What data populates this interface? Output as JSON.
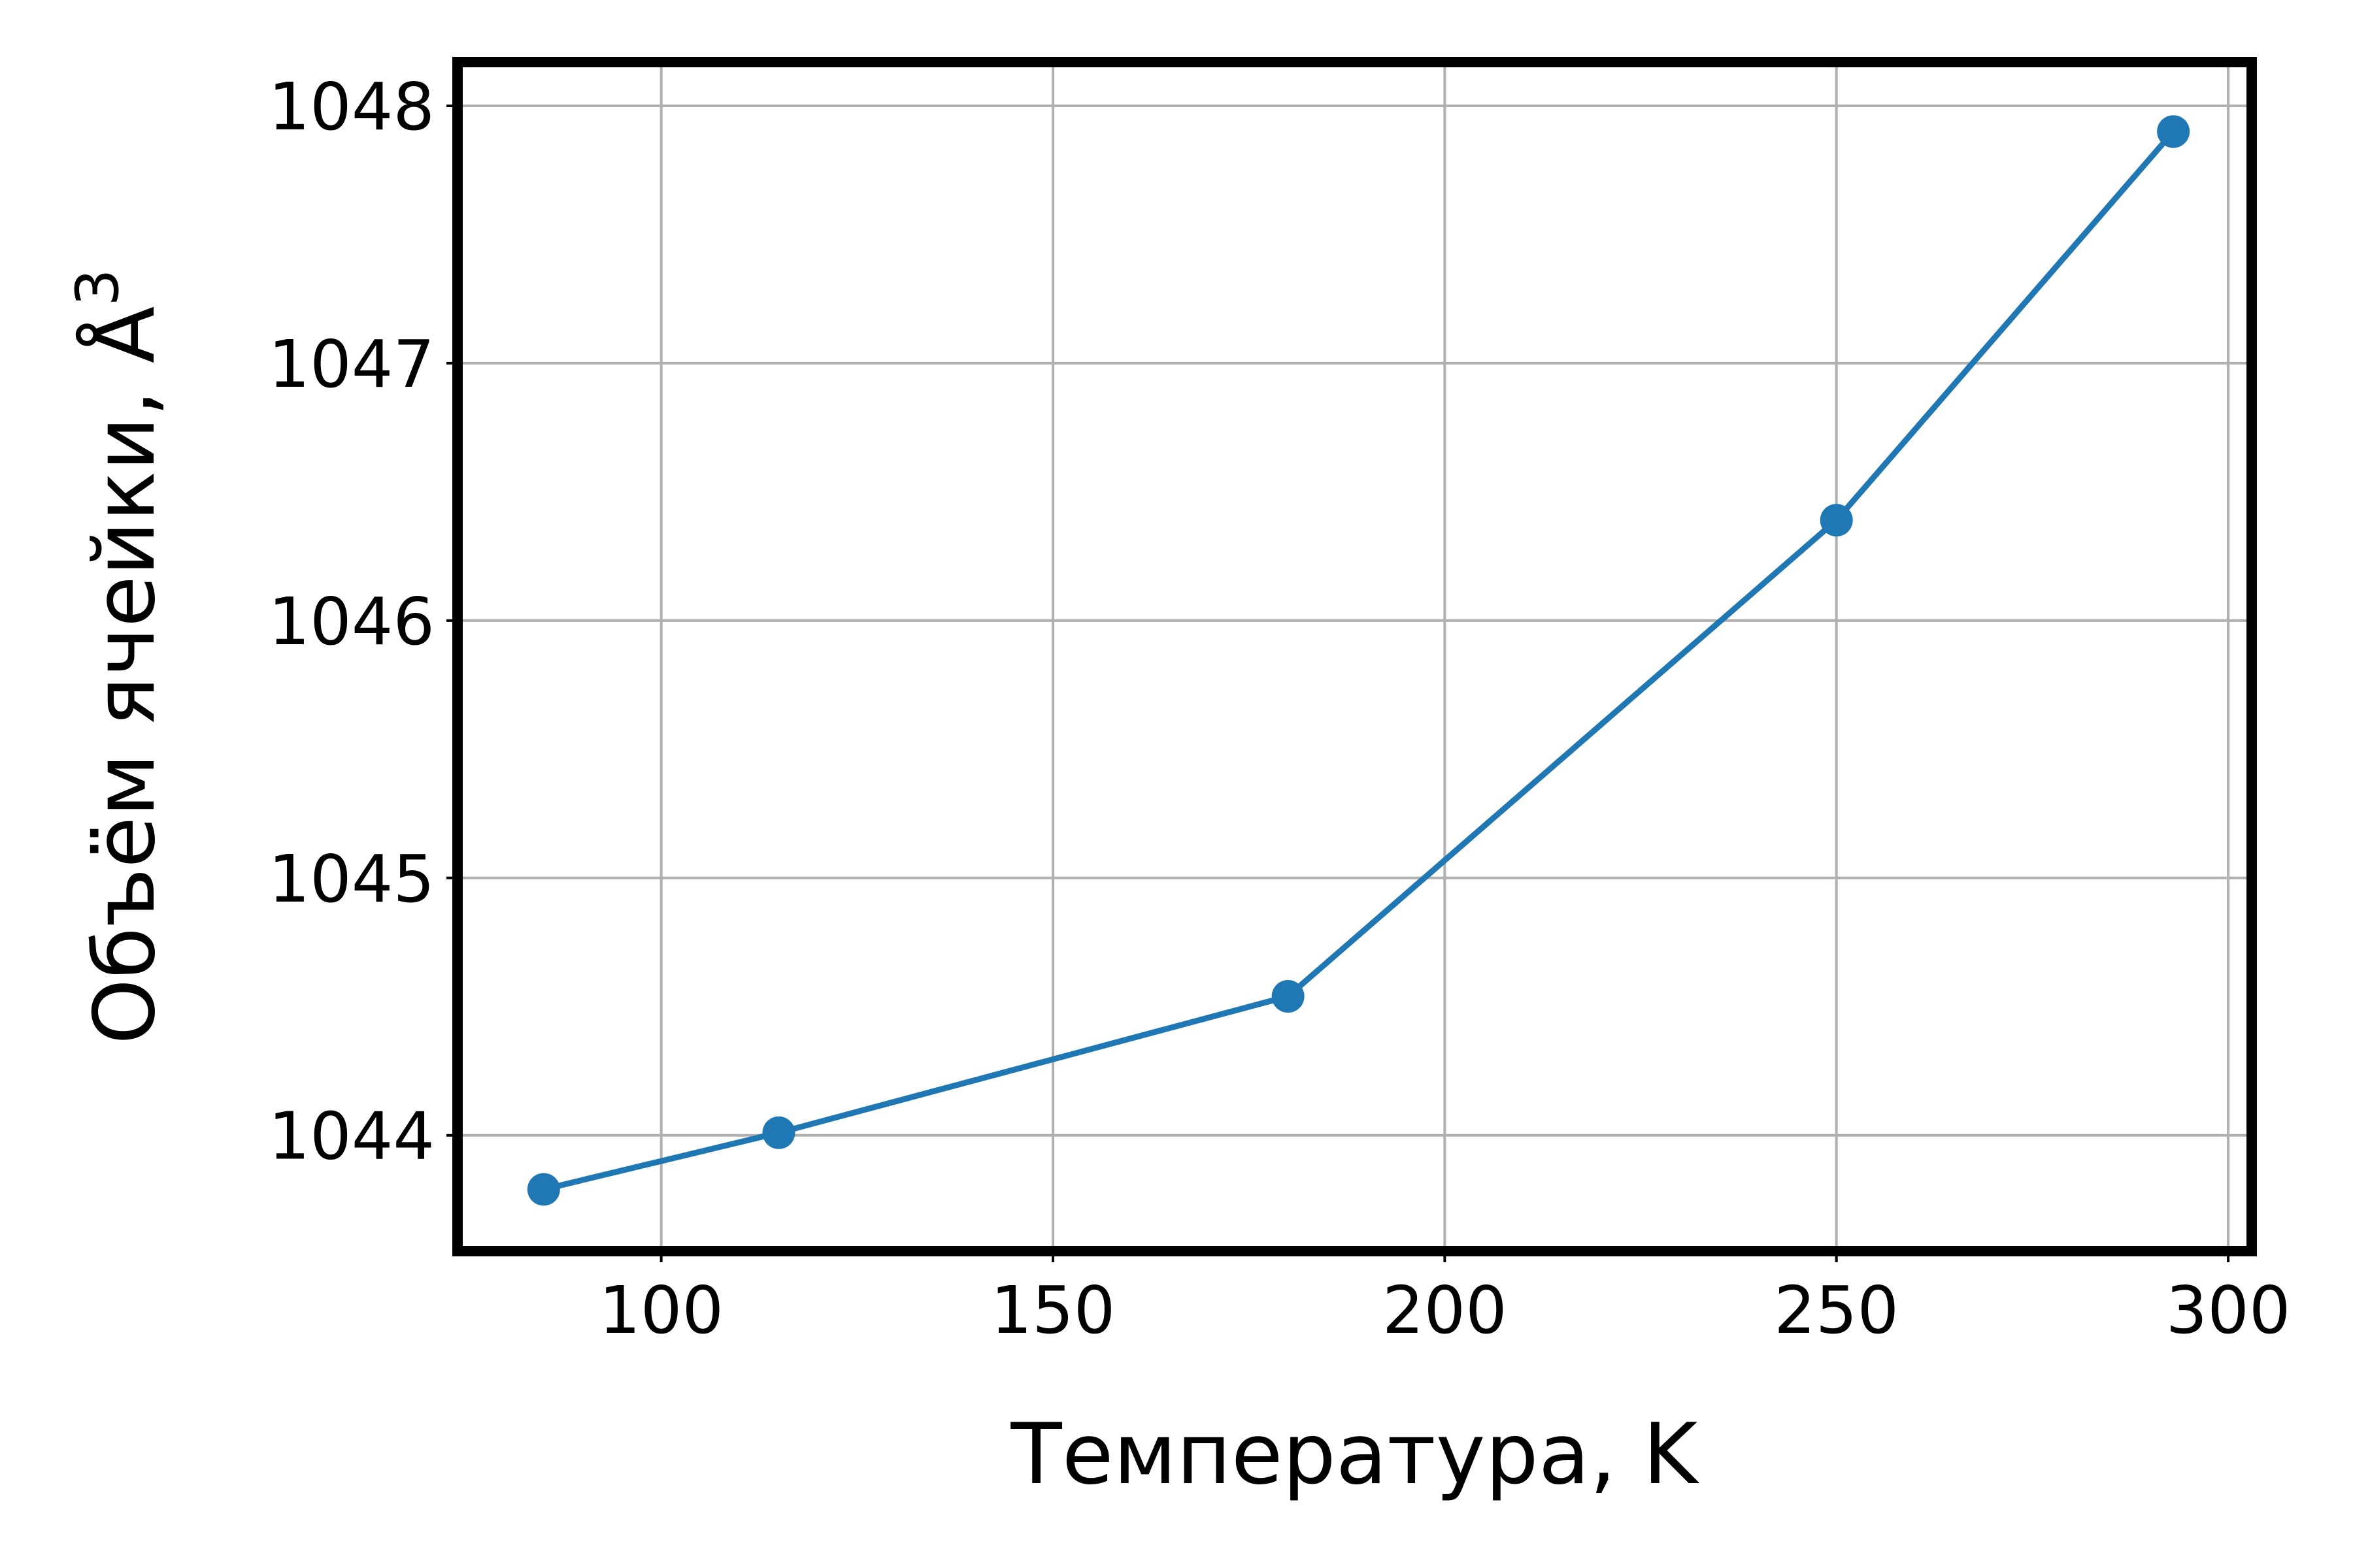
{
  "chart_data": {
    "type": "line",
    "title": "",
    "xlabel": "Температура, K",
    "ylabel_text": "Объём ячейки, Å",
    "ylabel_superscript": "3",
    "xlim": [
      74,
      303
    ],
    "ylim": [
      1043.55,
      1048.17
    ],
    "xticks": [
      100,
      150,
      200,
      250,
      300
    ],
    "yticks": [
      1044,
      1045,
      1046,
      1047,
      1048
    ],
    "grid": true,
    "legend": false,
    "series": [
      {
        "color": "#1f77b4",
        "marker": "circle",
        "x": [
          85,
          115,
          180,
          250,
          293
        ],
        "y": [
          1043.79,
          1044.01,
          1044.54,
          1046.39,
          1047.9
        ]
      }
    ]
  }
}
